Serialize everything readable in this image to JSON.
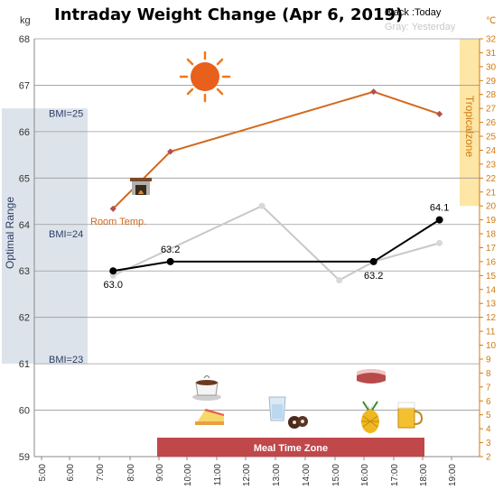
{
  "chart_data": {
    "type": "line",
    "title": "Intraday Weight Change (Apr 6, 2019)",
    "legend": {
      "today": "Black :Today",
      "yesterday": "Gray: Yesterday",
      "today_color": "#000000",
      "yesterday_color": "#c8c8c8"
    },
    "y_left": {
      "unit": "kg",
      "range": [
        59,
        68
      ],
      "ticks": [
        "59",
        "60",
        "61",
        "62",
        "63",
        "64",
        "65",
        "66",
        "67",
        "68"
      ],
      "grid": true
    },
    "y_right": {
      "unit": "℃",
      "range": [
        2,
        32
      ],
      "ticks": [
        "2",
        "3",
        "4",
        "5",
        "6",
        "7",
        "8",
        "9",
        "10",
        "11",
        "12",
        "13",
        "14",
        "15",
        "16",
        "17",
        "18",
        "19",
        "20",
        "21",
        "22",
        "23",
        "24",
        "25",
        "26",
        "27",
        "28",
        "29",
        "30",
        "31",
        "32"
      ],
      "color": "#d07a10"
    },
    "x_ticks": [
      "5:00",
      "6:00",
      "7:00",
      "8:00",
      "9:00",
      "10:00",
      "11:00",
      "12:00",
      "13:00",
      "14:00",
      "15:00",
      "16:00",
      "17:00",
      "18:00",
      "19:00"
    ],
    "series": [
      {
        "key": "today",
        "color": "#000000",
        "points": [
          {
            "x": 7.5,
            "y": 63.0
          },
          {
            "x": 9.5,
            "y": 63.2
          },
          {
            "x": 16.6,
            "y": 63.2
          },
          {
            "x": 18.9,
            "y": 64.1
          }
        ],
        "labels": [
          {
            "x": 7.5,
            "y": 63.0,
            "text": "63.0",
            "pos": "below"
          },
          {
            "x": 9.5,
            "y": 63.2,
            "text": "63.2",
            "pos": "above"
          },
          {
            "x": 16.6,
            "y": 63.2,
            "text": "63.2",
            "pos": "below"
          },
          {
            "x": 18.9,
            "y": 64.1,
            "text": "64.1",
            "pos": "above"
          }
        ]
      },
      {
        "key": "yesterday",
        "color": "#c8c8c8",
        "points": [
          {
            "x": 7.5,
            "y": 62.9
          },
          {
            "x": 12.7,
            "y": 64.4
          },
          {
            "x": 15.4,
            "y": 62.8
          },
          {
            "x": 16.6,
            "y": 63.2
          },
          {
            "x": 18.9,
            "y": 63.6
          }
        ]
      },
      {
        "key": "room-temp",
        "name": "Room Temp.",
        "color": "#d2691e",
        "axis": "right",
        "points": [
          {
            "x": 7.5,
            "y": 19.8
          },
          {
            "x": 9.5,
            "y": 23.9
          },
          {
            "x": 16.6,
            "y": 28.2
          },
          {
            "x": 18.9,
            "y": 26.6
          }
        ]
      }
    ],
    "bands": {
      "optimal_range": {
        "label": "Optimal Range",
        "ymin": 61,
        "ymax": 66.5,
        "color": "#dde3ea"
      },
      "tropical_zone": {
        "label": "Tropicalzone",
        "ymin": 20,
        "ymax": 32,
        "color": "#fde6a6"
      },
      "meal_time_zone": {
        "label": "Meal Time Zone",
        "xmin": 8.9,
        "xmax": 17.9,
        "color": "#c0474a"
      }
    },
    "bmi_labels": [
      {
        "text": "BMI=25",
        "y": 66.4
      },
      {
        "text": "BMI=24",
        "y": 63.8
      },
      {
        "text": "BMI=23",
        "y": 61.1
      }
    ],
    "icons": [
      "sun-icon",
      "fireplace-icon",
      "coffee-icon",
      "cake-icon",
      "water-glass-icon",
      "cookies-icon",
      "steak-icon",
      "pineapple-icon",
      "beer-icon"
    ]
  }
}
